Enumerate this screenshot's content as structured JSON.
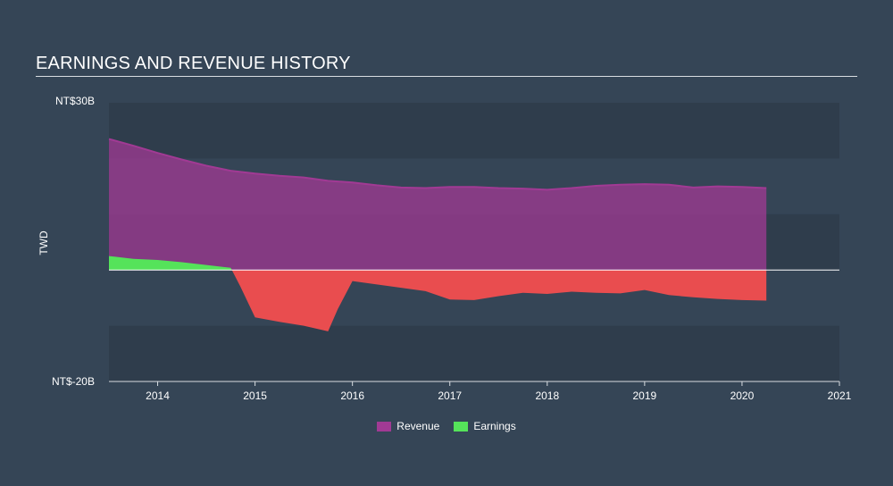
{
  "chart_data": {
    "type": "area",
    "title": "EARNINGS AND REVENUE HISTORY",
    "ylabel": "TWD",
    "ylim": [
      -20,
      30
    ],
    "y_ticks": [
      {
        "value": 30,
        "label": "NT$30B"
      },
      {
        "value": -20,
        "label": "NT$-20B"
      }
    ],
    "xlim": [
      2013.5,
      2021
    ],
    "x_ticks": [
      "2014",
      "2015",
      "2016",
      "2017",
      "2018",
      "2019",
      "2020",
      "2021"
    ],
    "legend": [
      {
        "name": "Revenue",
        "color": "#a13a94"
      },
      {
        "name": "Earnings",
        "color": "#55e35a"
      }
    ],
    "series": [
      {
        "name": "Revenue",
        "color": "#a13a94",
        "points": [
          [
            2013.5,
            23.5
          ],
          [
            2013.75,
            22.3
          ],
          [
            2014.0,
            21.0
          ],
          [
            2014.25,
            19.8
          ],
          [
            2014.5,
            18.7
          ],
          [
            2014.75,
            17.8
          ],
          [
            2015.0,
            17.3
          ],
          [
            2015.25,
            16.9
          ],
          [
            2015.5,
            16.6
          ],
          [
            2015.75,
            16.0
          ],
          [
            2016.0,
            15.7
          ],
          [
            2016.25,
            15.2
          ],
          [
            2016.5,
            14.8
          ],
          [
            2016.75,
            14.7
          ],
          [
            2017.0,
            14.9
          ],
          [
            2017.25,
            14.9
          ],
          [
            2017.5,
            14.7
          ],
          [
            2017.75,
            14.6
          ],
          [
            2018.0,
            14.4
          ],
          [
            2018.25,
            14.7
          ],
          [
            2018.5,
            15.1
          ],
          [
            2018.75,
            15.3
          ],
          [
            2019.0,
            15.4
          ],
          [
            2019.25,
            15.3
          ],
          [
            2019.5,
            14.8
          ],
          [
            2019.75,
            15.0
          ],
          [
            2020.0,
            14.9
          ],
          [
            2020.25,
            14.7
          ]
        ]
      },
      {
        "name": "Earnings",
        "color": "#55e35a",
        "neg_color": "#e94d4f",
        "points": [
          [
            2013.5,
            2.5
          ],
          [
            2013.75,
            2.0
          ],
          [
            2014.0,
            1.8
          ],
          [
            2014.25,
            1.4
          ],
          [
            2014.5,
            0.9
          ],
          [
            2014.75,
            0.4
          ],
          [
            2014.85,
            -3.0
          ],
          [
            2015.0,
            -8.5
          ],
          [
            2015.25,
            -9.3
          ],
          [
            2015.5,
            -10.0
          ],
          [
            2015.75,
            -11.0
          ],
          [
            2015.85,
            -7.0
          ],
          [
            2016.0,
            -2.0
          ],
          [
            2016.25,
            -2.6
          ],
          [
            2016.5,
            -3.2
          ],
          [
            2016.75,
            -3.8
          ],
          [
            2017.0,
            -5.3
          ],
          [
            2017.25,
            -5.4
          ],
          [
            2017.5,
            -4.7
          ],
          [
            2017.75,
            -4.1
          ],
          [
            2018.0,
            -4.3
          ],
          [
            2018.25,
            -3.9
          ],
          [
            2018.5,
            -4.1
          ],
          [
            2018.75,
            -4.2
          ],
          [
            2019.0,
            -3.6
          ],
          [
            2019.25,
            -4.5
          ],
          [
            2019.5,
            -4.9
          ],
          [
            2019.75,
            -5.2
          ],
          [
            2020.0,
            -5.4
          ],
          [
            2020.25,
            -5.5
          ]
        ]
      }
    ]
  }
}
